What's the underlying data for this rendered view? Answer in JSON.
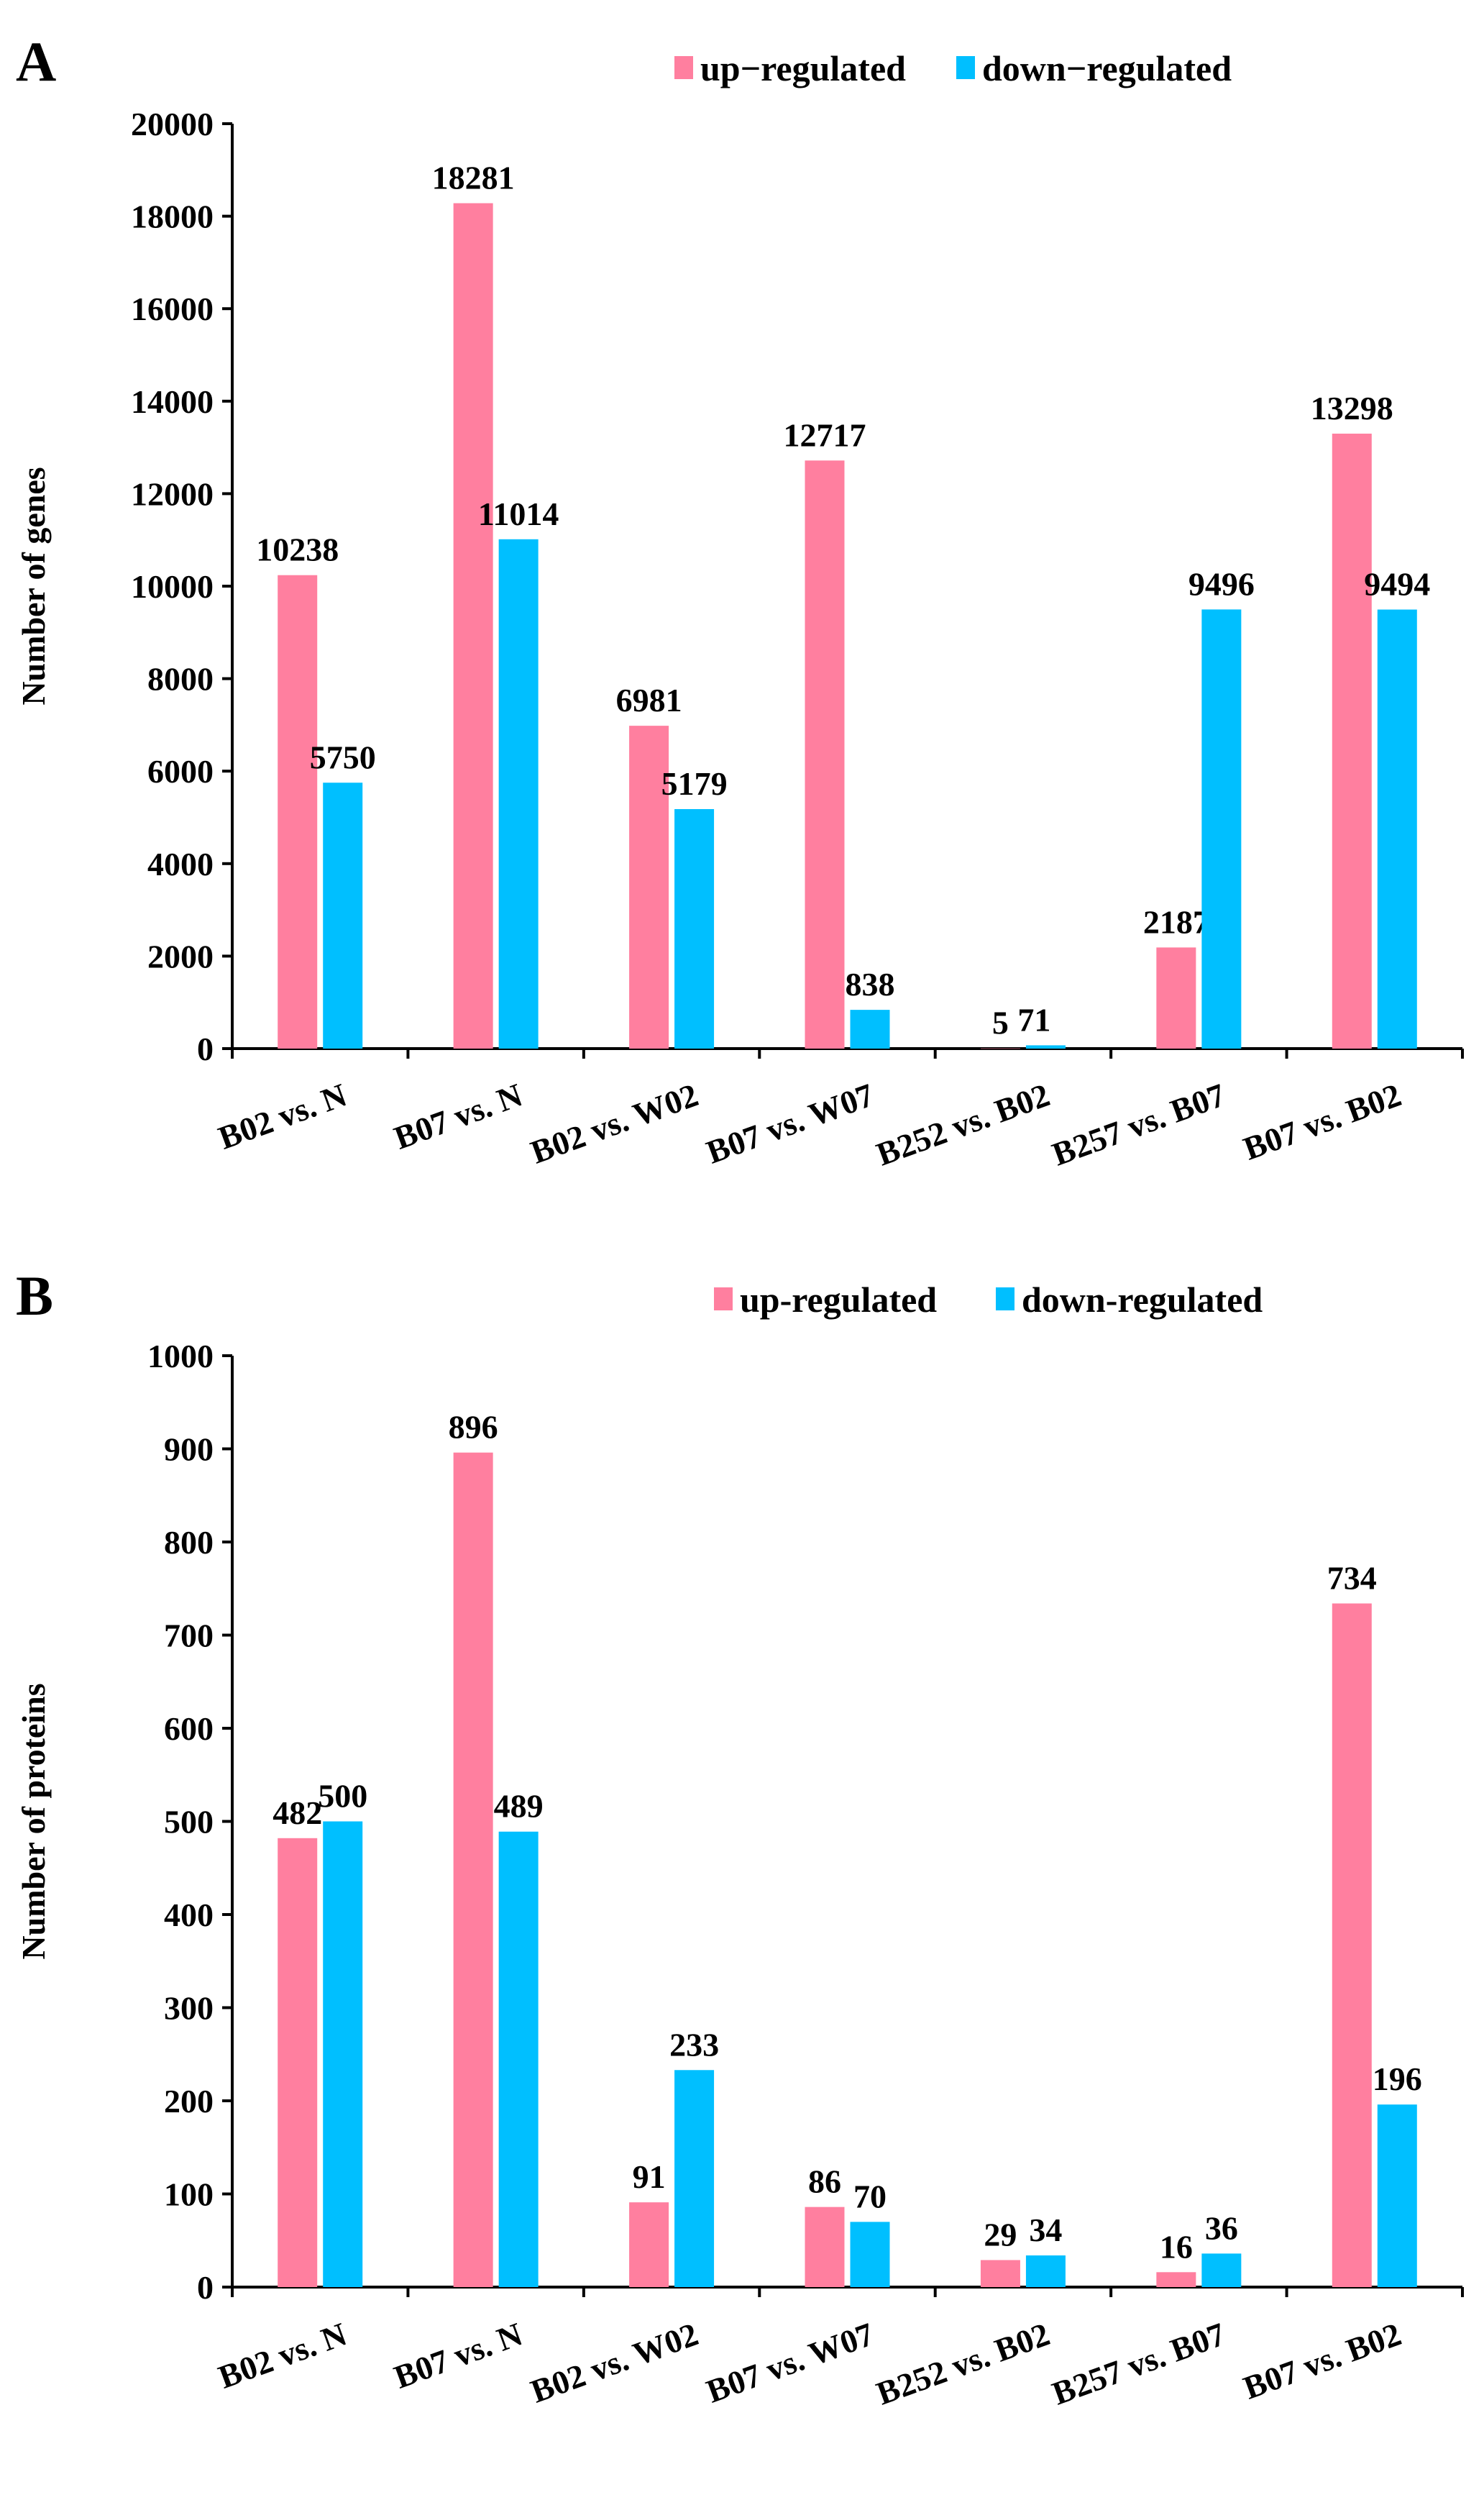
{
  "chart_data": [
    {
      "panel": "A",
      "type": "bar",
      "ylabel": "Number of genes",
      "ylim": [
        0,
        20000
      ],
      "yticks": [
        0,
        2000,
        4000,
        6000,
        8000,
        10000,
        12000,
        14000,
        16000,
        18000,
        20000
      ],
      "categories": [
        "B02 vs. N",
        "B07 vs. N",
        "B02 vs. W02",
        "B07 vs. W07",
        "B252 vs. B02",
        "B257 vs. B07",
        "B07 vs. B02"
      ],
      "series": [
        {
          "name": "up−regulated",
          "color": "#FF7F9F",
          "values": [
            10238,
            18281,
            6981,
            12717,
            5,
            2187,
            13298
          ]
        },
        {
          "name": "down−regulated",
          "color": "#00BFFF",
          "values": [
            5750,
            11014,
            5179,
            838,
            71,
            9496,
            9494
          ]
        }
      ]
    },
    {
      "panel": "B",
      "type": "bar",
      "ylabel": "Number of proteins",
      "ylim": [
        0,
        1000
      ],
      "yticks": [
        0,
        100,
        200,
        300,
        400,
        500,
        600,
        700,
        800,
        900,
        1000
      ],
      "categories": [
        "B02 vs. N",
        "B07 vs. N",
        "B02 vs. W02",
        "B07 vs. W07",
        "B252 vs. B02",
        "B257 vs. B07",
        "B07 vs. B02"
      ],
      "series": [
        {
          "name": "up-regulated",
          "color": "#FF7F9F",
          "values": [
            482,
            896,
            91,
            86,
            29,
            16,
            734
          ]
        },
        {
          "name": "down-regulated",
          "color": "#00BFFF",
          "values": [
            500,
            489,
            233,
            70,
            34,
            36,
            196
          ]
        }
      ]
    }
  ]
}
